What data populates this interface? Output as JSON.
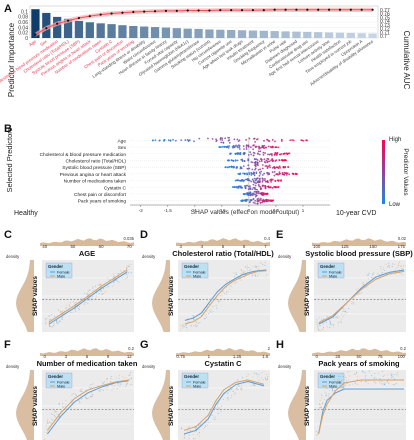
{
  "panelA": {
    "letter": "A",
    "chart_data": {
      "type": "bar",
      "ylabel": "Predictor Importance",
      "y2label": "Cumulative AUC",
      "ylim": [
        0,
        0.12
      ],
      "yticks": [
        0,
        0.02,
        0.04,
        0.06,
        0.08,
        0.1
      ],
      "y2lim": [
        0.695,
        0.78
      ],
      "y2ticks": [
        0.7,
        0.71,
        0.72,
        0.73,
        0.74,
        0.75,
        0.76,
        0.77
      ],
      "categories": [
        "Age",
        "Sex",
        "Cholesterol & blood pressure medication",
        "Cholesterol ratio (Total/HDL)",
        "Systolic blood pressure (SBP)",
        "Previous angina or heart attack",
        "Number of medications taken",
        "Cystatin C",
        "Chest pain or discomfort",
        "Pack years of smoking",
        "Long-standing illness or disability",
        "Waist circumference",
        "Heart disease in family history",
        "Forced vital capacity",
        "Glycated haemoglobin (HbA1c)",
        "Gamma glutamyltransferase",
        "Smoking status (current)",
        "Hip circumference",
        "Current cigarette use",
        "Age when last took drugs",
        "Insulin treatment",
        "Smoking frequency",
        "Microalbumin in urine",
        "Pulse rate",
        "Diabetes diagnosed",
        "Cardiovascular drug use",
        "Age first had sexual intercourse",
        "Leisure activity time",
        "Health satisfaction",
        "Time employed in current job",
        "Lipoprotein A",
        "Adverse/disability of disability allowance"
      ],
      "highlighted_count": 10,
      "values": [
        0.108,
        0.094,
        0.079,
        0.072,
        0.064,
        0.059,
        0.055,
        0.052,
        0.048,
        0.045,
        0.043,
        0.041,
        0.039,
        0.037,
        0.035,
        0.034,
        0.032,
        0.031,
        0.03,
        0.029,
        0.028,
        0.027,
        0.026,
        0.025,
        0.024,
        0.023,
        0.022,
        0.021,
        0.02,
        0.019,
        0.018,
        0.017
      ],
      "cumulative_auc": [
        0.704,
        0.721,
        0.733,
        0.741,
        0.748,
        0.753,
        0.757,
        0.76,
        0.762,
        0.764,
        0.765,
        0.766,
        0.767,
        0.767,
        0.768,
        0.768,
        0.768,
        0.769,
        0.769,
        0.769,
        0.769,
        0.769,
        0.77,
        0.77,
        0.77,
        0.77,
        0.77,
        0.77,
        0.77,
        0.77,
        0.77,
        0.77
      ]
    },
    "colors": {
      "bar_top": "#0e3d6b",
      "bar_end": "#c7d6e6",
      "top_label": "#e8384f",
      "label": "#444444",
      "auc_line": "#ef4f58",
      "auc_band": "#f6b1b4"
    }
  },
  "panelB": {
    "letter": "B",
    "chart_data": {
      "type": "scatter",
      "ylabel": "Selected Predictors",
      "xlabel": "SHAP values (effect on model output)",
      "xlim": [
        -2.2,
        1.5
      ],
      "xticks": [
        -2.0,
        -1.5,
        -1.0,
        -0.5,
        0.0,
        0.5,
        1.0
      ],
      "left_annotation": "Healthy",
      "right_annotation": "10-year CVD",
      "colorbar_label": "Predictor Values",
      "colorbar_high": "High",
      "colorbar_low": "Low",
      "predictors": [
        {
          "name": "Age",
          "min": -1.8,
          "max": 1.1
        },
        {
          "name": "Sex",
          "min": -0.55,
          "max": 0.55
        },
        {
          "name": "Cholesterol & blood pressure medication",
          "min": -0.35,
          "max": 0.75
        },
        {
          "name": "Cholesterol ratio (Total/HDL)",
          "min": -0.4,
          "max": 0.7
        },
        {
          "name": "Systolic blood pressure (SBP)",
          "min": -0.45,
          "max": 0.75
        },
        {
          "name": "Previous angina or heart attack",
          "min": -0.2,
          "max": 0.9
        },
        {
          "name": "Number of medications taken",
          "min": -0.25,
          "max": 0.6
        },
        {
          "name": "Cystatin C",
          "min": -0.3,
          "max": 0.55
        },
        {
          "name": "Chest pain or discomfort",
          "min": -0.1,
          "max": 0.35
        },
        {
          "name": "Pack years of smoking",
          "min": -0.15,
          "max": 0.45
        }
      ]
    },
    "colors": {
      "low": "#1e88e5",
      "high": "#ff0051"
    }
  },
  "dependence": [
    {
      "letter": "C",
      "title": "AGE",
      "xticks": [
        "40",
        "50",
        "60",
        "70"
      ],
      "xmin": 38,
      "xmax": 72,
      "top_tick": "0.035",
      "legend_title": "Gender",
      "legend_items": [
        "Female",
        "Male"
      ],
      "ylabel": "SHAP values",
      "density_label": "density",
      "kind": "linear",
      "chart_data": {
        "type": "line",
        "x": [
          40,
          45,
          50,
          55,
          60,
          65,
          70
        ],
        "series": [
          {
            "name": "Female",
            "values": [
              -1.5,
              -1.1,
              -0.7,
              -0.25,
              0.2,
              0.6,
              1.0
            ]
          },
          {
            "name": "Male",
            "values": [
              -1.4,
              -1.0,
              -0.6,
              -0.15,
              0.3,
              0.7,
              1.1
            ]
          }
        ]
      }
    },
    {
      "letter": "D",
      "title": "Cholesterol ratio (Total/HDL)",
      "xticks": [
        "3",
        "4",
        "5",
        "6",
        "7"
      ],
      "xmin": 2.2,
      "xmax": 7.6,
      "top_tick": "0.4",
      "legend_title": "Gender",
      "legend_items": [
        "Female",
        "Male"
      ],
      "ylabel": "SHAP values",
      "density_label": "density",
      "kind": "sigmoid",
      "chart_data": {
        "type": "line",
        "x": [
          2.5,
          3,
          3.5,
          4,
          4.5,
          5,
          5.5,
          6,
          6.5,
          7,
          7.5
        ],
        "series": [
          {
            "name": "Female",
            "values": [
              -0.35,
              -0.32,
              -0.25,
              -0.1,
              0.05,
              0.15,
              0.22,
              0.28,
              0.32,
              0.34,
              0.35
            ]
          },
          {
            "name": "Male",
            "values": [
              -0.4,
              -0.37,
              -0.3,
              -0.15,
              0.0,
              0.12,
              0.2,
              0.25,
              0.3,
              0.33,
              0.34
            ]
          }
        ]
      }
    },
    {
      "letter": "E",
      "title": "Systolic blood pressure (SBP)",
      "xticks": [
        "100",
        "125",
        "150",
        "175"
      ],
      "xmin": 92,
      "xmax": 185,
      "top_tick": "0.02",
      "legend_title": "Gender",
      "legend_items": [
        "Female",
        "Male"
      ],
      "ylabel": "SHAP values",
      "density_label": "density",
      "kind": "sigmoid",
      "chart_data": {
        "type": "line",
        "x": [
          95,
          110,
          125,
          140,
          155,
          170,
          185
        ],
        "series": [
          {
            "name": "Female",
            "values": [
              -0.4,
              -0.3,
              -0.1,
              0.1,
              0.25,
              0.32,
              0.35
            ]
          },
          {
            "name": "Male",
            "values": [
              -0.38,
              -0.28,
              -0.1,
              0.08,
              0.22,
              0.3,
              0.33
            ]
          }
        ]
      }
    },
    {
      "letter": "F",
      "title": "Number of medication taken",
      "xticks": [
        "0",
        "3",
        "6",
        "9",
        "12"
      ],
      "xmin": -0.5,
      "xmax": 12.5,
      "top_tick": "0.2",
      "legend_title": "Gender",
      "legend_items": [
        "Female",
        "Male"
      ],
      "ylabel": "SHAP values",
      "density_label": "density",
      "kind": "log",
      "chart_data": {
        "type": "line",
        "x": [
          0,
          2,
          4,
          6,
          8,
          10,
          12
        ],
        "series": [
          {
            "name": "Female",
            "values": [
              -0.3,
              -0.05,
              0.15,
              0.28,
              0.36,
              0.42,
              0.45
            ]
          },
          {
            "name": "Male",
            "values": [
              -0.25,
              0.0,
              0.2,
              0.32,
              0.38,
              0.43,
              0.46
            ]
          }
        ]
      }
    },
    {
      "letter": "G",
      "title": "Cystatin C",
      "xticks": [
        "0.75",
        "1",
        "1.25",
        "1.5"
      ],
      "xmin": 0.55,
      "xmax": 1.65,
      "top_tick": "2",
      "legend_title": "Gender",
      "legend_items": [
        "Female",
        "Male"
      ],
      "ylabel": "SHAP values",
      "density_label": "density",
      "kind": "sigmoid",
      "chart_data": {
        "type": "line",
        "x": [
          0.6,
          0.75,
          0.9,
          1.0,
          1.1,
          1.25,
          1.4,
          1.6
        ],
        "series": [
          {
            "name": "Female",
            "values": [
              -0.35,
              -0.3,
              -0.15,
              0.05,
              0.2,
              0.32,
              0.36,
              0.3
            ]
          },
          {
            "name": "Male",
            "values": [
              -0.3,
              -0.25,
              -0.1,
              0.1,
              0.25,
              0.35,
              0.38,
              0.32
            ]
          }
        ]
      }
    },
    {
      "letter": "H",
      "title": "Pack years of smoking",
      "xticks": [
        "0",
        "25",
        "50",
        "75",
        "100"
      ],
      "xmin": -3,
      "xmax": 100,
      "top_tick": "0.2",
      "legend_title": "Gender",
      "legend_items": [
        "Female",
        "Male"
      ],
      "ylabel": "SHAP values",
      "density_label": "density",
      "kind": "steplog",
      "chart_data": {
        "type": "line",
        "x": [
          0,
          5,
          10,
          20,
          30,
          50,
          75,
          100
        ],
        "series": [
          {
            "name": "Female",
            "values": [
              -0.3,
              0.0,
              0.15,
              0.25,
              0.3,
              0.3,
              0.3,
              0.3
            ]
          },
          {
            "name": "Male",
            "values": [
              -0.3,
              -0.05,
              0.1,
              0.28,
              0.38,
              0.42,
              0.42,
              0.42
            ]
          }
        ]
      }
    }
  ],
  "dep_colors": {
    "female": "#5b9bd5",
    "male": "#d7a16a",
    "fem_fill": "#9fc2e7",
    "male_fill": "#c9a27a",
    "panel_bg": "#ebebeb"
  }
}
